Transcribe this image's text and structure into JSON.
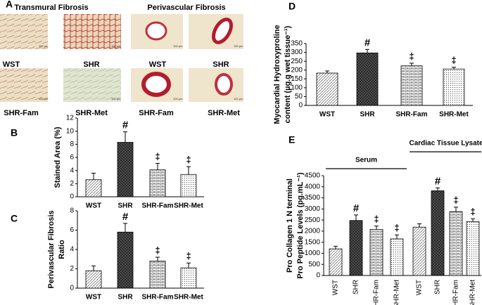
{
  "panel_a": {
    "letter": "A",
    "headings": [
      "Transmural Fibrosis",
      "Perivascular Fibrosis"
    ],
    "labels": [
      "WST",
      "SHR",
      "WST",
      "SHR",
      "SHR-Fam",
      "SHR-Met",
      "SHR-Fam",
      "SHR-Met"
    ],
    "scale_bar": "100 µm"
  },
  "chart_data": [
    {
      "type": "bar",
      "panel": "B",
      "ylabel": "Stained Area (%)",
      "categories": [
        "WST",
        "SHR",
        "SHR-Fam",
        "SHR-Met"
      ],
      "values": [
        2.6,
        8.3,
        4.1,
        3.4
      ],
      "errors": [
        1.0,
        1.6,
        1.0,
        1.2
      ],
      "annotations": [
        null,
        "#",
        "‡",
        "‡"
      ],
      "ylim": [
        0,
        12
      ],
      "yticks": [
        0,
        2,
        4,
        6,
        8,
        10,
        12
      ]
    },
    {
      "type": "bar",
      "panel": "C",
      "ylabel": [
        "Perivascular Fibrosis",
        "Ratio"
      ],
      "categories": [
        "WST",
        "SHR",
        "SHR-Fam",
        "SHR-Met"
      ],
      "values": [
        1.8,
        5.8,
        2.8,
        2.1
      ],
      "errors": [
        0.5,
        0.9,
        0.4,
        0.5
      ],
      "annotations": [
        null,
        "#",
        "‡",
        "‡"
      ],
      "ylim": [
        0,
        8
      ],
      "yticks": [
        0,
        2,
        4,
        6,
        8
      ]
    },
    {
      "type": "bar",
      "panel": "D",
      "ylabel": [
        "Myocardial Hydroxyproline",
        "content (µg.g wet tissue⁻¹)"
      ],
      "categories": [
        "WST",
        "SHR",
        "SHR-Fam",
        "SHR-Met"
      ],
      "values": [
        183,
        297,
        224,
        206
      ],
      "errors": [
        12,
        20,
        15,
        10
      ],
      "annotations": [
        null,
        "#",
        "‡",
        "‡"
      ],
      "ylim": [
        0,
        350
      ],
      "yticks": [
        0,
        50,
        100,
        150,
        200,
        250,
        300,
        350
      ]
    },
    {
      "type": "grouped-bar",
      "panel": "E",
      "ylabel": [
        "Pro Collagen 1 N terminal",
        "Pro Peptide Levels (pg.mL⁻¹)"
      ],
      "groups": [
        {
          "name": "Serum",
          "categories": [
            "WST",
            "SHR",
            "SHR-Fam",
            "SHR-Met"
          ],
          "values": [
            1200,
            2480,
            2080,
            1650
          ],
          "errors": [
            120,
            250,
            150,
            180
          ],
          "annotations": [
            null,
            "#",
            "‡",
            "‡"
          ]
        },
        {
          "name": "Cardiac Tissue Lysate",
          "categories": [
            "WST",
            "SHR",
            "SHR-Fam",
            "SHR-Met"
          ],
          "values": [
            2180,
            3820,
            2880,
            2430
          ],
          "errors": [
            150,
            130,
            200,
            130
          ],
          "annotations": [
            null,
            "#",
            "‡",
            "‡"
          ]
        }
      ],
      "ylim": [
        0,
        4500
      ],
      "yticks": [
        0,
        500,
        1000,
        1500,
        2000,
        2500,
        3000,
        3500,
        4000,
        4500
      ]
    }
  ]
}
